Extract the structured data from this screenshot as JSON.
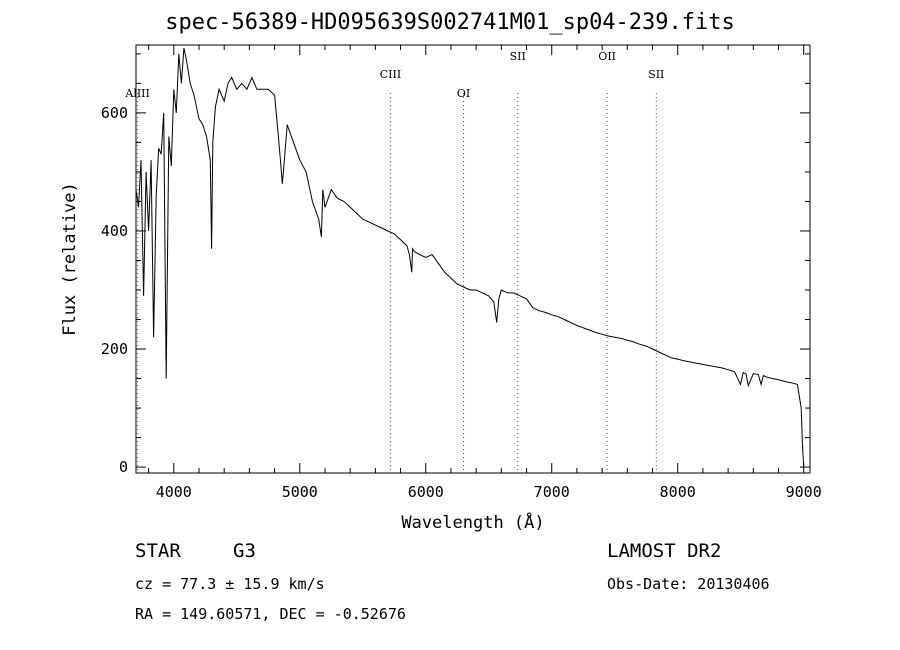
{
  "chart_data": {
    "type": "line",
    "title": "spec-56389-HD095639S002741M01_sp04-239.fits",
    "xlabel": "Wavelength (Å)",
    "ylabel": "Flux (relative)",
    "xlim": [
      3700,
      9050
    ],
    "ylim": [
      -10,
      715
    ],
    "x_ticks": [
      4000,
      5000,
      6000,
      7000,
      8000,
      9000
    ],
    "y_ticks": [
      0,
      200,
      400,
      600
    ],
    "grid": false,
    "series": [
      {
        "x": [
          3700,
          3720,
          3740,
          3760,
          3780,
          3800,
          3820,
          3840,
          3860,
          3880,
          3900,
          3920,
          3940,
          3960,
          3980,
          4000,
          4020,
          4040,
          4060,
          4080,
          4100,
          4130,
          4160,
          4200,
          4230,
          4260,
          4290,
          4300,
          4310,
          4330,
          4360,
          4400,
          4430,
          4460,
          4500,
          4540,
          4580,
          4620,
          4660,
          4700,
          4750,
          4800,
          4830,
          4850,
          4861,
          4870,
          4900,
          4950,
          5000,
          5050,
          5100,
          5150,
          5172,
          5183,
          5200,
          5250,
          5300,
          5350,
          5400,
          5450,
          5500,
          5550,
          5600,
          5650,
          5700,
          5750,
          5800,
          5850,
          5870,
          5889,
          5895,
          5910,
          5950,
          6000,
          6050,
          6100,
          6150,
          6200,
          6250,
          6300,
          6350,
          6400,
          6450,
          6500,
          6540,
          6563,
          6580,
          6600,
          6650,
          6700,
          6750,
          6800,
          6850,
          6900,
          6950,
          7000,
          7050,
          7100,
          7150,
          7200,
          7250,
          7300,
          7350,
          7400,
          7450,
          7500,
          7550,
          7600,
          7650,
          7700,
          7750,
          7800,
          7850,
          7900,
          7950,
          8000,
          8050,
          8100,
          8150,
          8200,
          8250,
          8300,
          8350,
          8400,
          8450,
          8498,
          8520,
          8542,
          8560,
          8600,
          8640,
          8662,
          8680,
          8700,
          8750,
          8800,
          8850,
          8900,
          8950,
          8980,
          8990,
          9000
        ],
        "values": [
          470,
          440,
          520,
          290,
          500,
          400,
          520,
          220,
          460,
          540,
          530,
          600,
          150,
          560,
          510,
          640,
          600,
          700,
          650,
          710,
          690,
          650,
          630,
          590,
          580,
          560,
          520,
          370,
          550,
          610,
          640,
          620,
          650,
          660,
          640,
          650,
          640,
          660,
          640,
          640,
          640,
          630,
          560,
          510,
          480,
          500,
          580,
          550,
          520,
          500,
          450,
          420,
          390,
          470,
          440,
          470,
          455,
          450,
          440,
          430,
          420,
          415,
          410,
          405,
          400,
          395,
          385,
          375,
          360,
          330,
          370,
          365,
          360,
          355,
          360,
          345,
          330,
          320,
          310,
          305,
          300,
          300,
          295,
          290,
          280,
          245,
          285,
          300,
          295,
          295,
          290,
          285,
          270,
          265,
          262,
          258,
          255,
          250,
          245,
          240,
          236,
          232,
          228,
          225,
          222,
          220,
          218,
          215,
          212,
          208,
          205,
          200,
          195,
          190,
          185,
          183,
          180,
          178,
          176,
          174,
          172,
          170,
          168,
          165,
          162,
          140,
          160,
          158,
          138,
          158,
          157,
          140,
          155,
          153,
          150,
          148,
          145,
          143,
          140,
          100,
          40,
          0
        ]
      }
    ],
    "line_markers": [
      {
        "label": "AlIII",
        "x": 3713
      },
      {
        "label": "CIII",
        "x": 5720
      },
      {
        "label": "OI",
        "x": 6300
      },
      {
        "label": "SII",
        "x": 6730
      },
      {
        "label": "OII",
        "x": 7440
      },
      {
        "label": "SII",
        "x": 7830
      }
    ],
    "colors": {
      "trace": "#000000",
      "markers": "#ff0000",
      "axes": "#000000"
    }
  },
  "footer": {
    "object_class": "STAR",
    "subclass": "G3",
    "survey": "LAMOST DR2",
    "velocity": "cz = 77.3 ± 15.9 km/s",
    "obs_date": "Obs-Date: 20130406",
    "coordinates": "RA = 149.60571, DEC =  -0.52676"
  }
}
